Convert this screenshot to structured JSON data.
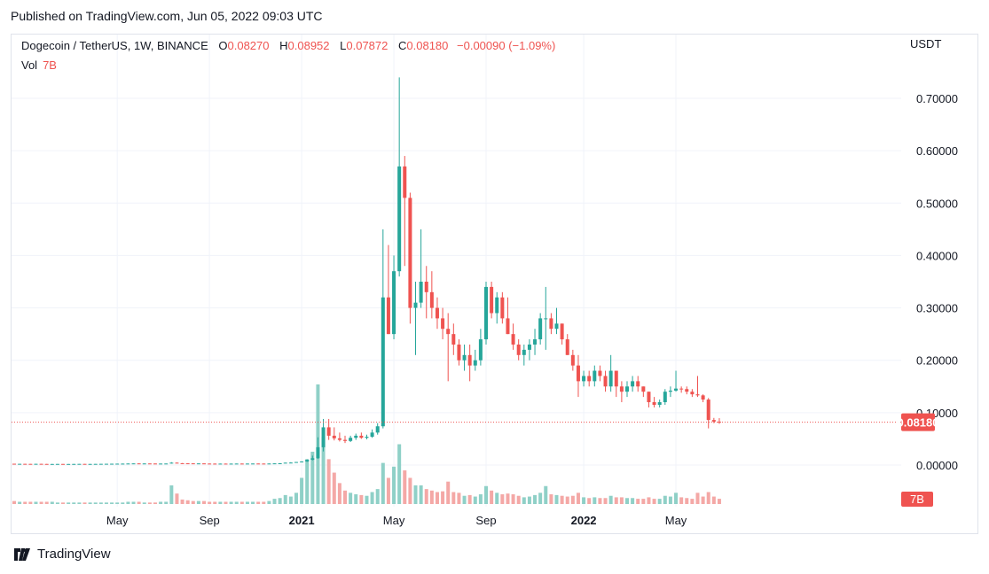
{
  "published": "Published on TradingView.com, Jun 05, 2022 09:03 UTC",
  "legend": {
    "symbol": "Dogecoin / TetherUS, 1W, BINANCE",
    "open_label": "O",
    "open": "0.08270",
    "high_label": "H",
    "high": "0.08952",
    "low_label": "L",
    "low": "0.07872",
    "close_label": "C",
    "close": "0.08180",
    "change": "−0.00090 (−1.09%)",
    "vol_label": "Vol",
    "vol": "7B"
  },
  "axis_unit": "USDT",
  "footer_brand": "TradingView",
  "colors": {
    "up": "#26a69a",
    "down": "#ef5350",
    "vol_up": "#8fd0c7",
    "vol_down": "#f4a8a6",
    "grid": "#f0f3fa"
  },
  "chart_data": {
    "type": "candlestick",
    "y_ticks": [
      "0.70000",
      "0.60000",
      "0.50000",
      "0.40000",
      "0.30000",
      "0.20000",
      "0.10000",
      "0.00000"
    ],
    "y_tick_values": [
      0.7,
      0.6,
      0.5,
      0.4,
      0.3,
      0.2,
      0.1,
      0.0
    ],
    "ylim": [
      0,
      0.74
    ],
    "x_ticks": [
      {
        "label": "May",
        "index": 19,
        "bold": false
      },
      {
        "label": "Sep",
        "index": 36,
        "bold": false
      },
      {
        "label": "2021",
        "index": 53,
        "bold": true
      },
      {
        "label": "May",
        "index": 70,
        "bold": false
      },
      {
        "label": "Sep",
        "index": 87,
        "bold": false
      },
      {
        "label": "2022",
        "index": 105,
        "bold": true
      },
      {
        "label": "May",
        "index": 122,
        "bold": false
      }
    ],
    "last_price": {
      "value": 0.0818,
      "label": "0.08180"
    },
    "last_volume_label": "7B",
    "candles": [
      [
        0.0025,
        0.0026,
        0.0021,
        0.0022,
        0.4
      ],
      [
        0.0022,
        0.0024,
        0.002,
        0.0023,
        0.3
      ],
      [
        0.0023,
        0.0025,
        0.0021,
        0.0022,
        0.3
      ],
      [
        0.0022,
        0.0023,
        0.0019,
        0.002,
        0.3
      ],
      [
        0.002,
        0.0024,
        0.0019,
        0.0023,
        0.3
      ],
      [
        0.0023,
        0.0024,
        0.002,
        0.0021,
        0.3
      ],
      [
        0.0021,
        0.0022,
        0.0018,
        0.0019,
        0.3
      ],
      [
        0.0019,
        0.0021,
        0.0017,
        0.002,
        0.3
      ],
      [
        0.002,
        0.0022,
        0.0019,
        0.0021,
        0.2
      ],
      [
        0.0021,
        0.0021,
        0.0018,
        0.0019,
        0.2
      ],
      [
        0.0019,
        0.0021,
        0.0018,
        0.002,
        0.2
      ],
      [
        0.002,
        0.0022,
        0.0019,
        0.0021,
        0.2
      ],
      [
        0.0021,
        0.0023,
        0.002,
        0.0022,
        0.2
      ],
      [
        0.0022,
        0.0022,
        0.0019,
        0.002,
        0.2
      ],
      [
        0.002,
        0.0022,
        0.0019,
        0.0021,
        0.2
      ],
      [
        0.0021,
        0.0023,
        0.002,
        0.0022,
        0.2
      ],
      [
        0.0022,
        0.0024,
        0.0021,
        0.0023,
        0.2
      ],
      [
        0.0023,
        0.0025,
        0.0022,
        0.0024,
        0.2
      ],
      [
        0.0024,
        0.0026,
        0.0022,
        0.0025,
        0.2
      ],
      [
        0.0025,
        0.0027,
        0.0024,
        0.0026,
        0.2
      ],
      [
        0.0026,
        0.0028,
        0.0025,
        0.0027,
        0.2
      ],
      [
        0.0027,
        0.003,
        0.0026,
        0.0029,
        0.3
      ],
      [
        0.0029,
        0.0032,
        0.0028,
        0.0031,
        0.3
      ],
      [
        0.0031,
        0.0033,
        0.0028,
        0.0029,
        0.3
      ],
      [
        0.0029,
        0.0031,
        0.0027,
        0.003,
        0.2
      ],
      [
        0.003,
        0.0032,
        0.0028,
        0.0029,
        0.2
      ],
      [
        0.0029,
        0.003,
        0.0026,
        0.0027,
        0.2
      ],
      [
        0.0027,
        0.0029,
        0.0026,
        0.0028,
        0.3
      ],
      [
        0.0028,
        0.003,
        0.0027,
        0.0029,
        0.3
      ],
      [
        0.0029,
        0.0055,
        0.0028,
        0.0045,
        2.5
      ],
      [
        0.0045,
        0.0049,
        0.0033,
        0.0035,
        1.4
      ],
      [
        0.0035,
        0.0038,
        0.0031,
        0.0033,
        0.6
      ],
      [
        0.0033,
        0.0036,
        0.003,
        0.0032,
        0.5
      ],
      [
        0.0032,
        0.0034,
        0.0029,
        0.003,
        0.4
      ],
      [
        0.003,
        0.0033,
        0.0028,
        0.0031,
        0.4
      ],
      [
        0.0031,
        0.0032,
        0.0027,
        0.0028,
        0.4
      ],
      [
        0.0028,
        0.003,
        0.0026,
        0.0027,
        0.3
      ],
      [
        0.0027,
        0.0029,
        0.0025,
        0.0026,
        0.3
      ],
      [
        0.0026,
        0.0028,
        0.0025,
        0.0027,
        0.3
      ],
      [
        0.0027,
        0.0028,
        0.0025,
        0.0026,
        0.3
      ],
      [
        0.0026,
        0.0028,
        0.0025,
        0.0027,
        0.3
      ],
      [
        0.0027,
        0.0029,
        0.0026,
        0.0028,
        0.3
      ],
      [
        0.0028,
        0.003,
        0.0026,
        0.0027,
        0.3
      ],
      [
        0.0027,
        0.0029,
        0.0026,
        0.0028,
        0.3
      ],
      [
        0.0028,
        0.003,
        0.0027,
        0.0029,
        0.3
      ],
      [
        0.0029,
        0.0031,
        0.0027,
        0.0028,
        0.3
      ],
      [
        0.0028,
        0.0029,
        0.0026,
        0.0027,
        0.3
      ],
      [
        0.0027,
        0.003,
        0.0026,
        0.0029,
        0.4
      ],
      [
        0.0029,
        0.0033,
        0.0028,
        0.0032,
        0.7
      ],
      [
        0.0032,
        0.0036,
        0.003,
        0.0034,
        0.8
      ],
      [
        0.0034,
        0.0046,
        0.0033,
        0.0045,
        1.2
      ],
      [
        0.0045,
        0.0055,
        0.004,
        0.0047,
        1.0
      ],
      [
        0.0047,
        0.006,
        0.0044,
        0.0058,
        1.5
      ],
      [
        0.0058,
        0.0072,
        0.005,
        0.0068,
        3.5
      ],
      [
        0.0068,
        0.011,
        0.006,
        0.01,
        6.0
      ],
      [
        0.01,
        0.018,
        0.009,
        0.013,
        7.0
      ],
      [
        0.013,
        0.053,
        0.012,
        0.034,
        16.0
      ],
      [
        0.034,
        0.088,
        0.026,
        0.072,
        9.0
      ],
      [
        0.072,
        0.088,
        0.048,
        0.056,
        6.0
      ],
      [
        0.056,
        0.072,
        0.047,
        0.051,
        4.2
      ],
      [
        0.051,
        0.062,
        0.045,
        0.048,
        2.8
      ],
      [
        0.048,
        0.056,
        0.042,
        0.046,
        1.8
      ],
      [
        0.046,
        0.056,
        0.044,
        0.052,
        1.5
      ],
      [
        0.052,
        0.06,
        0.048,
        0.056,
        1.3
      ],
      [
        0.056,
        0.062,
        0.05,
        0.052,
        1.2
      ],
      [
        0.052,
        0.058,
        0.049,
        0.054,
        1.1
      ],
      [
        0.054,
        0.068,
        0.052,
        0.062,
        1.6
      ],
      [
        0.062,
        0.08,
        0.058,
        0.074,
        2.0
      ],
      [
        0.074,
        0.45,
        0.07,
        0.32,
        5.5
      ],
      [
        0.32,
        0.42,
        0.25,
        0.25,
        3.5
      ],
      [
        0.25,
        0.4,
        0.24,
        0.37,
        5.0
      ],
      [
        0.37,
        0.74,
        0.36,
        0.57,
        8.0
      ],
      [
        0.57,
        0.59,
        0.38,
        0.51,
        4.5
      ],
      [
        0.51,
        0.52,
        0.27,
        0.3,
        3.5
      ],
      [
        0.3,
        0.35,
        0.21,
        0.31,
        2.5
      ],
      [
        0.31,
        0.45,
        0.3,
        0.35,
        2.5
      ],
      [
        0.35,
        0.38,
        0.28,
        0.33,
        2.0
      ],
      [
        0.33,
        0.37,
        0.28,
        0.3,
        1.8
      ],
      [
        0.3,
        0.32,
        0.26,
        0.28,
        1.6
      ],
      [
        0.28,
        0.3,
        0.24,
        0.26,
        1.7
      ],
      [
        0.26,
        0.29,
        0.16,
        0.25,
        3.0
      ],
      [
        0.25,
        0.27,
        0.21,
        0.23,
        1.6
      ],
      [
        0.23,
        0.24,
        0.19,
        0.2,
        1.5
      ],
      [
        0.2,
        0.23,
        0.18,
        0.21,
        1.1
      ],
      [
        0.21,
        0.23,
        0.16,
        0.19,
        1.2
      ],
      [
        0.19,
        0.22,
        0.18,
        0.2,
        1.0
      ],
      [
        0.2,
        0.26,
        0.19,
        0.24,
        1.3
      ],
      [
        0.24,
        0.35,
        0.23,
        0.34,
        2.4
      ],
      [
        0.34,
        0.35,
        0.28,
        0.29,
        1.8
      ],
      [
        0.29,
        0.33,
        0.27,
        0.32,
        1.5
      ],
      [
        0.32,
        0.33,
        0.27,
        0.28,
        1.3
      ],
      [
        0.28,
        0.32,
        0.25,
        0.25,
        1.4
      ],
      [
        0.25,
        0.27,
        0.22,
        0.23,
        1.3
      ],
      [
        0.23,
        0.24,
        0.2,
        0.21,
        1.1
      ],
      [
        0.21,
        0.23,
        0.19,
        0.22,
        0.9
      ],
      [
        0.22,
        0.24,
        0.2,
        0.23,
        1.0
      ],
      [
        0.23,
        0.26,
        0.21,
        0.24,
        1.2
      ],
      [
        0.24,
        0.29,
        0.23,
        0.28,
        1.5
      ],
      [
        0.28,
        0.34,
        0.22,
        0.28,
        2.4
      ],
      [
        0.28,
        0.29,
        0.25,
        0.26,
        1.3
      ],
      [
        0.26,
        0.3,
        0.25,
        0.27,
        1.2
      ],
      [
        0.27,
        0.27,
        0.23,
        0.24,
        1.1
      ],
      [
        0.24,
        0.25,
        0.21,
        0.21,
        1.0
      ],
      [
        0.21,
        0.22,
        0.18,
        0.19,
        1.1
      ],
      [
        0.19,
        0.21,
        0.13,
        0.16,
        1.5
      ],
      [
        0.16,
        0.18,
        0.15,
        0.17,
        0.9
      ],
      [
        0.17,
        0.18,
        0.15,
        0.16,
        0.8
      ],
      [
        0.16,
        0.19,
        0.15,
        0.18,
        0.9
      ],
      [
        0.18,
        0.19,
        0.16,
        0.17,
        0.8
      ],
      [
        0.17,
        0.18,
        0.14,
        0.15,
        0.8
      ],
      [
        0.15,
        0.21,
        0.14,
        0.18,
        1.1
      ],
      [
        0.18,
        0.18,
        0.13,
        0.15,
        0.9
      ],
      [
        0.15,
        0.16,
        0.12,
        0.14,
        0.9
      ],
      [
        0.14,
        0.16,
        0.13,
        0.15,
        0.8
      ],
      [
        0.15,
        0.17,
        0.14,
        0.16,
        0.8
      ],
      [
        0.16,
        0.17,
        0.14,
        0.15,
        0.7
      ],
      [
        0.15,
        0.15,
        0.13,
        0.14,
        0.7
      ],
      [
        0.14,
        0.14,
        0.11,
        0.12,
        0.9
      ],
      [
        0.12,
        0.13,
        0.11,
        0.115,
        0.7
      ],
      [
        0.115,
        0.125,
        0.11,
        0.12,
        0.7
      ],
      [
        0.12,
        0.145,
        0.115,
        0.14,
        1.1
      ],
      [
        0.14,
        0.15,
        0.13,
        0.142,
        1.0
      ],
      [
        0.142,
        0.18,
        0.14,
        0.146,
        1.5
      ],
      [
        0.146,
        0.15,
        0.138,
        0.145,
        0.9
      ],
      [
        0.145,
        0.15,
        0.135,
        0.14,
        0.8
      ],
      [
        0.14,
        0.145,
        0.13,
        0.135,
        0.7
      ],
      [
        0.135,
        0.17,
        0.13,
        0.133,
        1.5
      ],
      [
        0.133,
        0.135,
        0.12,
        0.125,
        1.0
      ],
      [
        0.125,
        0.128,
        0.07,
        0.086,
        1.6
      ],
      [
        0.086,
        0.09,
        0.08,
        0.083,
        1.0
      ],
      [
        0.0827,
        0.0895,
        0.0787,
        0.0818,
        0.7
      ]
    ]
  }
}
